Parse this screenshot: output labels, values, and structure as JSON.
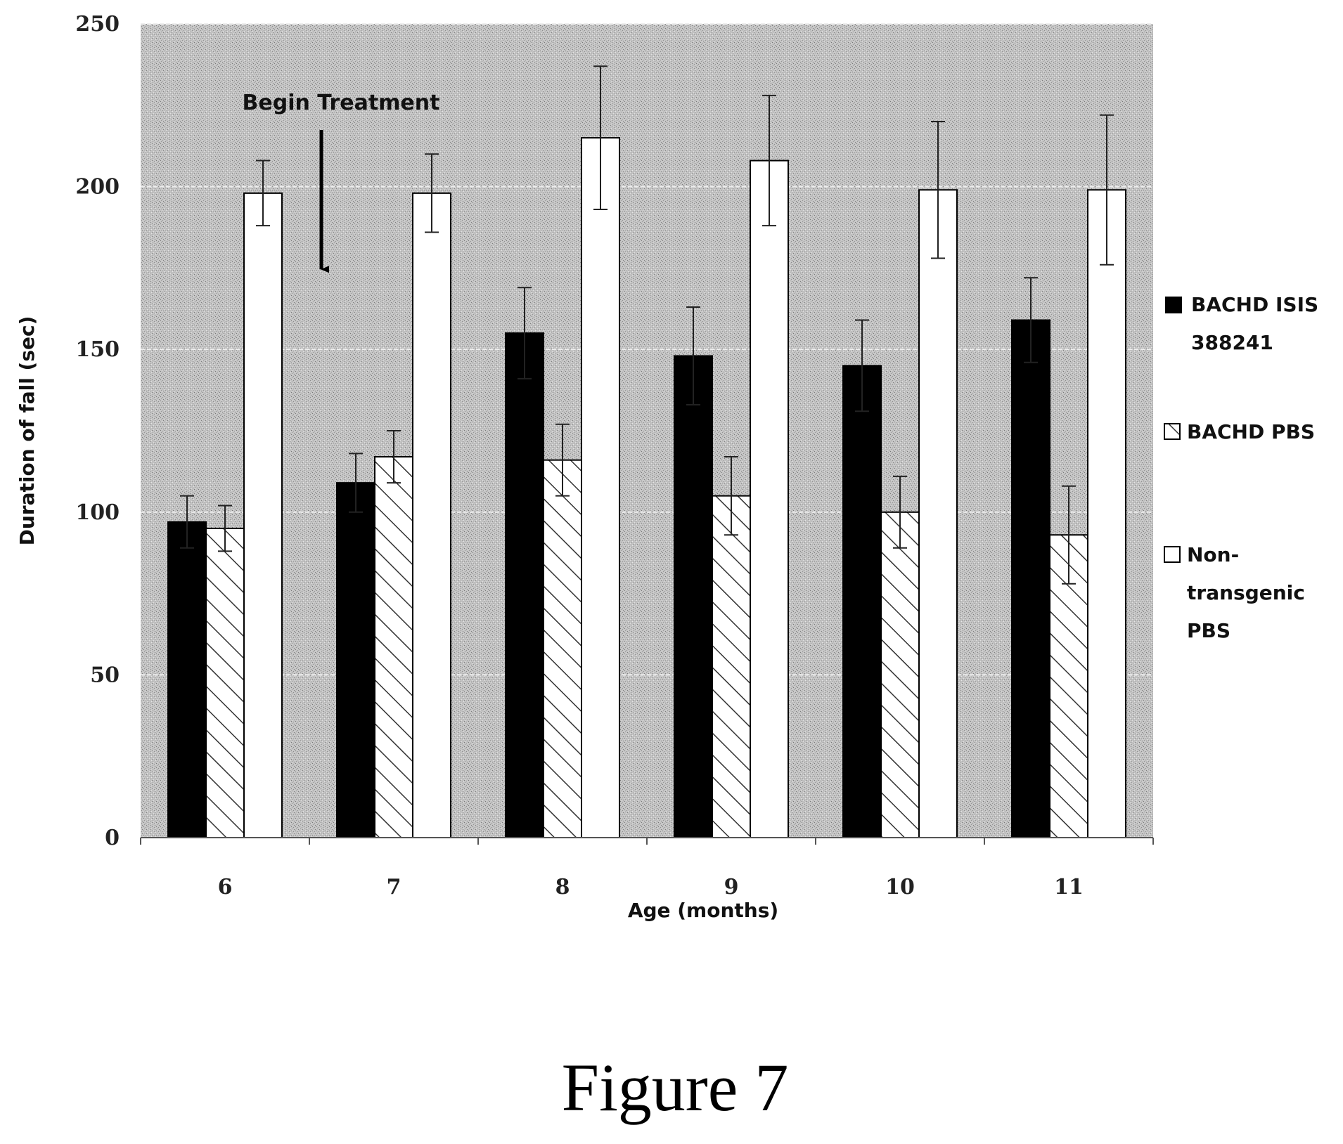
{
  "chart_data": {
    "type": "bar",
    "xlabel": "Age (months)",
    "ylabel": "Duration of fall (sec)",
    "ylim": [
      0,
      250
    ],
    "yticks": [
      0,
      50,
      100,
      150,
      200,
      250
    ],
    "grid": true,
    "legend_position": "right",
    "categories": [
      "6",
      "7",
      "8",
      "9",
      "10",
      "11"
    ],
    "series": [
      {
        "name": "BACHD ISIS 388241",
        "pattern": "solid",
        "color": "#000000",
        "values": [
          97,
          109,
          155,
          148,
          145,
          159
        ],
        "errors": [
          8,
          9,
          14,
          15,
          14,
          13
        ]
      },
      {
        "name": "BACHD PBS",
        "pattern": "hatched",
        "color": "#ffffff",
        "values": [
          95,
          117,
          116,
          105,
          100,
          93
        ],
        "errors": [
          7,
          8,
          11,
          12,
          11,
          15
        ]
      },
      {
        "name": "Non-transgenic PBS",
        "pattern": "open",
        "color": "#ffffff",
        "values": [
          198,
          198,
          215,
          208,
          199,
          199
        ],
        "errors": [
          10,
          12,
          22,
          20,
          21,
          23
        ]
      }
    ],
    "annotations": [
      {
        "text": "Begin Treatment",
        "at_category": "6",
        "arrow_to_value": 172
      }
    ]
  },
  "caption": "Figure 7",
  "colors": {
    "plot_background": "#bdbdbd",
    "bar_outline": "#000000"
  }
}
